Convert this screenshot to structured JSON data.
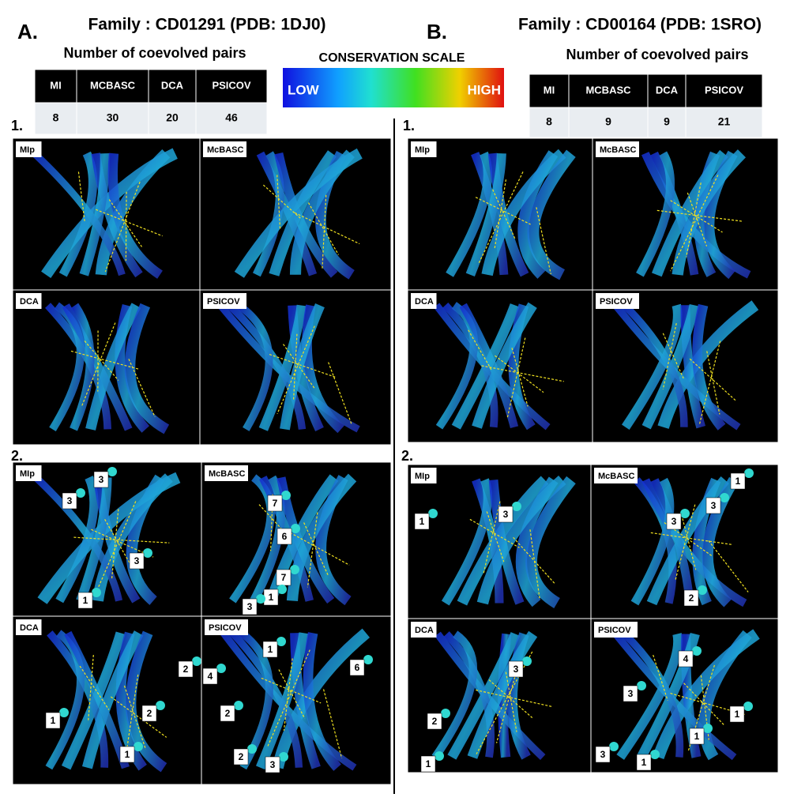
{
  "scale": {
    "title": "CONSERVATION SCALE",
    "low": "LOW",
    "high": "HIGH"
  },
  "panels": [
    {
      "letter": "A.",
      "family": "Family : CD01291 (PDB: 1DJ0)",
      "table_title": "Number of coevolved pairs",
      "table": {
        "header": [
          "MI",
          "MCBASC",
          "DCA",
          "PSICOV"
        ],
        "rows": [
          [
            8,
            30,
            20,
            46
          ]
        ]
      },
      "sections": [
        {
          "label": "1.",
          "images": [
            {
              "label": "MIp"
            },
            {
              "label": "McBASC"
            },
            {
              "label": "DCA"
            },
            {
              "label": "PSICOV"
            }
          ]
        },
        {
          "label": "2.",
          "images": [
            {
              "label": "MIp",
              "markers": [
                "3",
                "3",
                "3",
                "1"
              ]
            },
            {
              "label": "McBASC",
              "markers": [
                "7",
                "6",
                "7",
                "1",
                "3"
              ]
            },
            {
              "label": "DCA",
              "markers": [
                "2",
                "2",
                "1",
                "1"
              ]
            },
            {
              "label": "PSICOV",
              "markers": [
                "1",
                "4",
                "6",
                "2",
                "2",
                "3"
              ]
            }
          ]
        }
      ]
    },
    {
      "letter": "B.",
      "family": "Family : CD00164 (PDB: 1SRO)",
      "table_title": "Number of coevolved pairs",
      "table": {
        "header": [
          "MI",
          "MCBASC",
          "DCA",
          "PSICOV"
        ],
        "rows": [
          [
            8,
            9,
            9,
            21
          ]
        ]
      },
      "sections": [
        {
          "label": "1.",
          "images": [
            {
              "label": "MIp"
            },
            {
              "label": "McBASC"
            },
            {
              "label": "DCA"
            },
            {
              "label": "PSICOV"
            }
          ]
        },
        {
          "label": "2.",
          "images": [
            {
              "label": "MIp",
              "markers": [
                "1",
                "3"
              ]
            },
            {
              "label": "McBASC",
              "markers": [
                "1",
                "3",
                "3",
                "2"
              ]
            },
            {
              "label": "DCA",
              "markers": [
                "3",
                "2",
                "1"
              ]
            },
            {
              "label": "PSICOV",
              "markers": [
                "4",
                "3",
                "1",
                "1",
                "3",
                "1"
              ]
            }
          ]
        }
      ]
    }
  ]
}
